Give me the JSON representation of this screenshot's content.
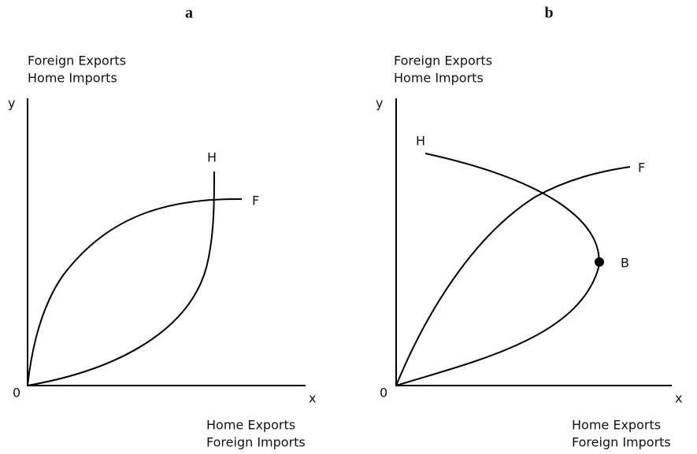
{
  "panels": [
    {
      "title": "a",
      "y_label": [
        "Foreign Exports",
        "Home Imports"
      ],
      "y_axis": "y",
      "origin": "0",
      "x_axis": "x",
      "x_label": [
        "Home Exports",
        "Foreign Imports"
      ],
      "curves": [
        {
          "label": "H"
        },
        {
          "label": "F"
        }
      ]
    },
    {
      "title": "b",
      "y_label": [
        "Foreign Exports",
        "Home Imports"
      ],
      "y_axis": "y",
      "origin": "0",
      "x_axis": "x",
      "x_label": [
        "Home Exports",
        "Foreign Imports"
      ],
      "curves": [
        {
          "label": "H"
        },
        {
          "label": "F"
        }
      ],
      "points": [
        {
          "label": "B"
        }
      ]
    }
  ]
}
